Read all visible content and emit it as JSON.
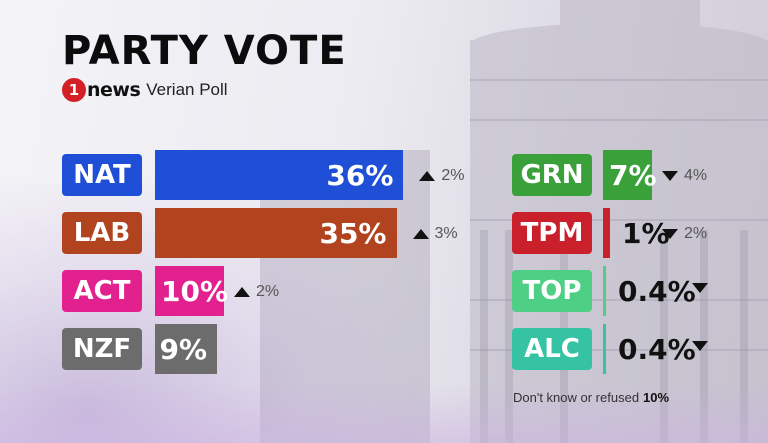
{
  "title": "PARTY VOTE",
  "brand": {
    "logo_number": "1",
    "logo_text": "news",
    "poll_name": "Verian Poll"
  },
  "colors": {
    "NAT": "#1f4fd6",
    "LAB": "#b1431f",
    "ACT": "#e2218f",
    "NZF": "#6c6c6c",
    "GRN": "#3aa13a",
    "TPM": "#c9202c",
    "TOP": "#4fcf86",
    "ALC": "#35c3a3"
  },
  "chart_data": {
    "type": "bar",
    "title": "PARTY VOTE",
    "unit": "%",
    "parties": [
      {
        "code": "NAT",
        "value": 36,
        "label": "36%",
        "change_direction": "up",
        "change": "2%"
      },
      {
        "code": "LAB",
        "value": 35,
        "label": "35%",
        "change_direction": "up",
        "change": "3%"
      },
      {
        "code": "ACT",
        "value": 10,
        "label": "10%",
        "change_direction": "up",
        "change": "2%"
      },
      {
        "code": "NZF",
        "value": 9,
        "label": "9%",
        "change_direction": "none",
        "change": ""
      },
      {
        "code": "GRN",
        "value": 7,
        "label": "7%",
        "change_direction": "down",
        "change": "4%"
      },
      {
        "code": "TPM",
        "value": 1,
        "label": "1%",
        "change_direction": "down",
        "change": "2%"
      },
      {
        "code": "TOP",
        "value": 0.4,
        "label": "0.4%",
        "change_direction": "down",
        "change": ""
      },
      {
        "code": "ALC",
        "value": 0.4,
        "label": "0.4%",
        "change_direction": "down",
        "change": ""
      }
    ]
  },
  "footnote": {
    "text": "Don't know or refused",
    "value": "10%"
  }
}
